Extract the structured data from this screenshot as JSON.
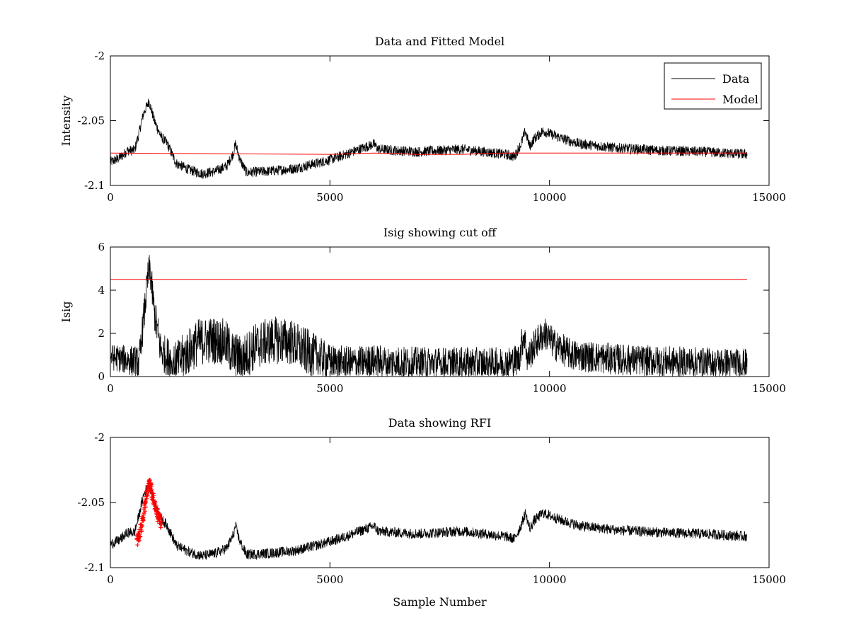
{
  "chart_data": [
    {
      "type": "line",
      "title": "Data and Fitted Model",
      "xlabel": "",
      "ylabel": "Intensity",
      "xlim": [
        0,
        15000
      ],
      "ylim": [
        -2.1,
        -2.0
      ],
      "xticks": [
        0,
        5000,
        10000,
        15000
      ],
      "yticks": [
        -2.1,
        -2.05,
        -2
      ],
      "xtick_labels": [
        "0",
        "5000",
        "10000",
        "15000"
      ],
      "ytick_labels": [
        "-2.1",
        "-2.05",
        "-2"
      ],
      "legend": {
        "position": "top-right",
        "entries": [
          {
            "label": "Data",
            "color": "#000000"
          },
          {
            "label": "Model",
            "color": "#ff0000"
          }
        ]
      },
      "series": [
        {
          "name": "Data",
          "color": "#000000",
          "noise": 0.004,
          "points": [
            [
              0,
              -2.082
            ],
            [
              200,
              -2.079
            ],
            [
              400,
              -2.073
            ],
            [
              550,
              -2.073
            ],
            [
              650,
              -2.06
            ],
            [
              750,
              -2.045
            ],
            [
              880,
              -2.035
            ],
            [
              1000,
              -2.05
            ],
            [
              1150,
              -2.062
            ],
            [
              1300,
              -2.068
            ],
            [
              1500,
              -2.083
            ],
            [
              1800,
              -2.088
            ],
            [
              2100,
              -2.091
            ],
            [
              2400,
              -2.089
            ],
            [
              2650,
              -2.085
            ],
            [
              2800,
              -2.075
            ],
            [
              2850,
              -2.068
            ],
            [
              2950,
              -2.08
            ],
            [
              3100,
              -2.09
            ],
            [
              3600,
              -2.089
            ],
            [
              4200,
              -2.087
            ],
            [
              4800,
              -2.082
            ],
            [
              5200,
              -2.078
            ],
            [
              5600,
              -2.073
            ],
            [
              6000,
              -2.068
            ],
            [
              6100,
              -2.072
            ],
            [
              6500,
              -2.073
            ],
            [
              7000,
              -2.074
            ],
            [
              7500,
              -2.073
            ],
            [
              8000,
              -2.072
            ],
            [
              8500,
              -2.074
            ],
            [
              9000,
              -2.076
            ],
            [
              9200,
              -2.078
            ],
            [
              9350,
              -2.068
            ],
            [
              9450,
              -2.058
            ],
            [
              9550,
              -2.07
            ],
            [
              9650,
              -2.064
            ],
            [
              9850,
              -2.058
            ],
            [
              10000,
              -2.06
            ],
            [
              10300,
              -2.064
            ],
            [
              10700,
              -2.068
            ],
            [
              11500,
              -2.071
            ],
            [
              12500,
              -2.073
            ],
            [
              13500,
              -2.074
            ],
            [
              14500,
              -2.076
            ]
          ]
        },
        {
          "name": "Model",
          "color": "#ff0000",
          "points": [
            [
              0,
              -2.075
            ],
            [
              5000,
              -2.076
            ],
            [
              6000,
              -2.075
            ],
            [
              7000,
              -2.076
            ],
            [
              8000,
              -2.076
            ],
            [
              9000,
              -2.075
            ],
            [
              10000,
              -2.075
            ],
            [
              14500,
              -2.075
            ]
          ]
        }
      ]
    },
    {
      "type": "line",
      "title": "Isig showing cut off",
      "xlabel": "",
      "ylabel": "Isig",
      "xlim": [
        0,
        15000
      ],
      "ylim": [
        0,
        6
      ],
      "xticks": [
        0,
        5000,
        10000,
        15000
      ],
      "yticks": [
        0,
        2,
        4,
        6
      ],
      "xtick_labels": [
        "0",
        "5000",
        "10000",
        "15000"
      ],
      "ytick_labels": [
        "0",
        "2",
        "4",
        "6"
      ],
      "series": [
        {
          "color": "#000000",
          "points": [
            [
              0,
              0.9
            ],
            [
              300,
              0.8
            ],
            [
              550,
              0.7
            ],
            [
              650,
              0.6
            ],
            [
              750,
              2.5
            ],
            [
              850,
              4.5
            ],
            [
              900,
              5.0
            ],
            [
              1000,
              3.0
            ],
            [
              1150,
              1.2
            ],
            [
              1300,
              0.9
            ],
            [
              1500,
              0.6
            ],
            [
              1700,
              1.0
            ],
            [
              2000,
              1.6
            ],
            [
              2300,
              1.7
            ],
            [
              2600,
              1.6
            ],
            [
              2800,
              1.0
            ],
            [
              3000,
              0.8
            ],
            [
              3300,
              1.4
            ],
            [
              3700,
              1.7
            ],
            [
              4100,
              1.6
            ],
            [
              4500,
              1.1
            ],
            [
              5000,
              0.7
            ],
            [
              5500,
              0.6
            ],
            [
              6000,
              0.7
            ],
            [
              7000,
              0.6
            ],
            [
              8000,
              0.6
            ],
            [
              9000,
              0.6
            ],
            [
              9300,
              0.8
            ],
            [
              9420,
              2.0
            ],
            [
              9500,
              0.8
            ],
            [
              9700,
              1.6
            ],
            [
              9900,
              2.0
            ],
            [
              10100,
              1.5
            ],
            [
              10500,
              1.0
            ],
            [
              11500,
              0.8
            ],
            [
              12500,
              0.7
            ],
            [
              14500,
              0.6
            ]
          ],
          "spread": [
            [
              0,
              0.6
            ],
            [
              1200,
              0.9
            ],
            [
              1700,
              1.1
            ],
            [
              4500,
              1.1
            ],
            [
              5000,
              0.8
            ],
            [
              14500,
              0.7
            ]
          ]
        },
        {
          "color": "#ff0000",
          "points": [
            [
              0,
              4.5
            ],
            [
              14500,
              4.5
            ]
          ]
        }
      ]
    },
    {
      "type": "line",
      "title": "Data showing RFI",
      "xlabel": "Sample Number",
      "ylabel": "",
      "xlim": [
        0,
        15000
      ],
      "ylim": [
        -2.1,
        -2.0
      ],
      "xticks": [
        0,
        5000,
        10000,
        15000
      ],
      "yticks": [
        -2.1,
        -2.05,
        -2
      ],
      "xtick_labels": [
        "0",
        "5000",
        "10000",
        "15000"
      ],
      "ytick_labels": [
        "-2.1",
        "-2.05",
        "-2"
      ],
      "series": [
        {
          "color": "#000000",
          "noise": 0.004,
          "points": [
            [
              0,
              -2.082
            ],
            [
              200,
              -2.079
            ],
            [
              400,
              -2.073
            ],
            [
              550,
              -2.073
            ],
            [
              650,
              -2.06
            ],
            [
              750,
              -2.045
            ],
            [
              880,
              -2.035
            ],
            [
              1000,
              -2.05
            ],
            [
              1150,
              -2.062
            ],
            [
              1300,
              -2.068
            ],
            [
              1500,
              -2.083
            ],
            [
              1800,
              -2.088
            ],
            [
              2100,
              -2.091
            ],
            [
              2400,
              -2.089
            ],
            [
              2650,
              -2.085
            ],
            [
              2800,
              -2.075
            ],
            [
              2850,
              -2.068
            ],
            [
              2950,
              -2.08
            ],
            [
              3100,
              -2.09
            ],
            [
              3600,
              -2.089
            ],
            [
              4200,
              -2.087
            ],
            [
              4800,
              -2.082
            ],
            [
              5200,
              -2.078
            ],
            [
              5600,
              -2.073
            ],
            [
              6000,
              -2.068
            ],
            [
              6100,
              -2.072
            ],
            [
              6500,
              -2.073
            ],
            [
              7000,
              -2.074
            ],
            [
              7500,
              -2.073
            ],
            [
              8000,
              -2.072
            ],
            [
              8500,
              -2.074
            ],
            [
              9000,
              -2.076
            ],
            [
              9200,
              -2.078
            ],
            [
              9350,
              -2.068
            ],
            [
              9450,
              -2.058
            ],
            [
              9550,
              -2.07
            ],
            [
              9650,
              -2.064
            ],
            [
              9850,
              -2.058
            ],
            [
              10000,
              -2.06
            ],
            [
              10300,
              -2.064
            ],
            [
              10700,
              -2.068
            ],
            [
              11500,
              -2.071
            ],
            [
              12500,
              -2.073
            ],
            [
              13500,
              -2.074
            ],
            [
              14500,
              -2.076
            ]
          ]
        },
        {
          "color": "#ff0000",
          "marker": "+",
          "points": [
            [
              600,
              -2.08
            ],
            [
              640,
              -2.077
            ],
            [
              680,
              -2.072
            ],
            [
              720,
              -2.066
            ],
            [
              760,
              -2.058
            ],
            [
              800,
              -2.05
            ],
            [
              840,
              -2.043
            ],
            [
              870,
              -2.038
            ],
            [
              890,
              -2.034
            ],
            [
              910,
              -2.037
            ],
            [
              940,
              -2.042
            ],
            [
              980,
              -2.048
            ],
            [
              1020,
              -2.054
            ],
            [
              1060,
              -2.058
            ],
            [
              1100,
              -2.062
            ],
            [
              1140,
              -2.064
            ],
            [
              1170,
              -2.065
            ]
          ],
          "spread": 0.005
        }
      ]
    }
  ]
}
